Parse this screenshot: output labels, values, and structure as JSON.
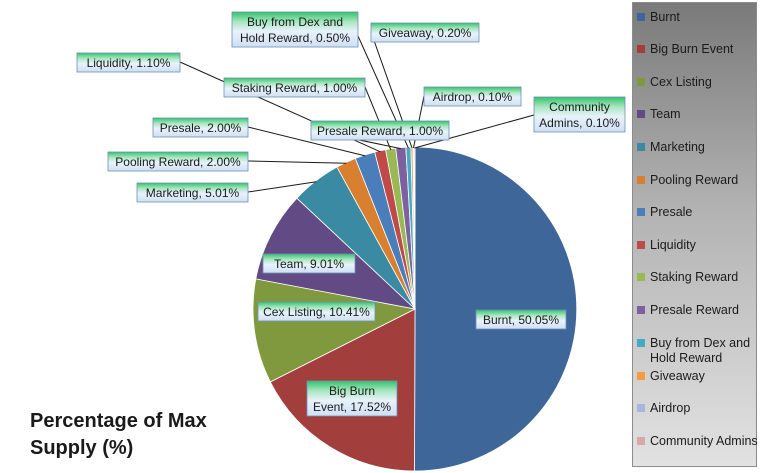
{
  "chart_data": {
    "type": "pie",
    "title": "Percentage of Max Supply (%)",
    "slices": [
      {
        "name": "Burnt",
        "value": 50.05,
        "label": "Burnt, 50.05%",
        "color": "#3f6699"
      },
      {
        "name": "Big Burn Event",
        "value": 17.52,
        "label": "Big Burn Event, 17.52%",
        "color": "#a23f3c"
      },
      {
        "name": "Cex Listing",
        "value": 10.41,
        "label": "Cex Listing, 10.41%",
        "color": "#80993e"
      },
      {
        "name": "Team",
        "value": 9.01,
        "label": "Team, 9.01%",
        "color": "#624b84"
      },
      {
        "name": "Marketing",
        "value": 5.01,
        "label": "Marketing, 5.01%",
        "color": "#3a8aa3"
      },
      {
        "name": "Pooling Reward",
        "value": 2.0,
        "label": "Pooling Reward, 2.00%",
        "color": "#d8802f"
      },
      {
        "name": "Presale",
        "value": 2.0,
        "label": "Presale, 2.00%",
        "color": "#4a7ebb"
      },
      {
        "name": "Liquidity",
        "value": 1.1,
        "label": "Liquidity, 1.10%",
        "color": "#be4b48"
      },
      {
        "name": "Staking Reward",
        "value": 1.0,
        "label": "Staking Reward, 1.00%",
        "color": "#98b954"
      },
      {
        "name": "Presale Reward",
        "value": 1.0,
        "label": "Presale Reward, 1.00%",
        "color": "#7d60a0"
      },
      {
        "name": "Buy from Dex and Hold Reward",
        "value": 0.5,
        "label": "Buy from Dex and Hold Reward, 0.50%",
        "color": "#46aac5"
      },
      {
        "name": "Giveaway",
        "value": 0.2,
        "label": "Giveaway, 0.20%",
        "color": "#f69b43"
      },
      {
        "name": "Airdrop",
        "value": 0.1,
        "label": "Airdrop, 0.10%",
        "color": "#a5b8d9"
      },
      {
        "name": "Community Admins",
        "value": 0.1,
        "label": "Community Admins, 0.10%",
        "color": "#d9a7a6"
      }
    ],
    "legend_position": "right"
  }
}
